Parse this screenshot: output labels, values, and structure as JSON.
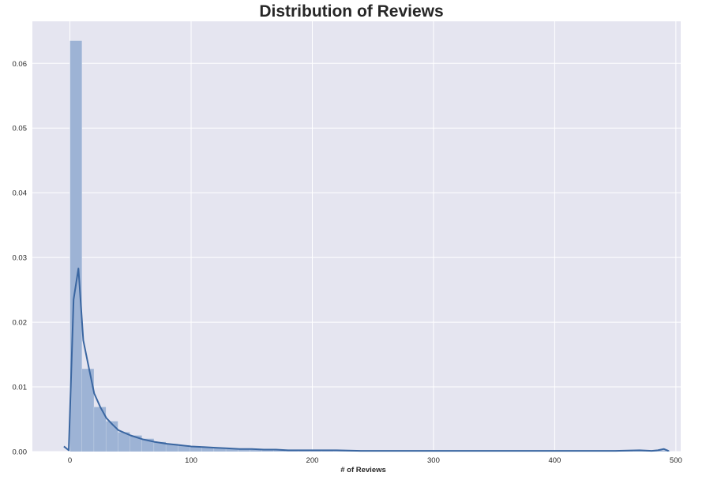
{
  "chart_data": {
    "type": "bar",
    "title": "Distribution of Reviews",
    "xlabel": "# of Reviews",
    "ylabel": "",
    "xlim": [
      -31,
      504
    ],
    "ylim": [
      0,
      0.0665
    ],
    "xticks": [
      0,
      100,
      200,
      300,
      400,
      500
    ],
    "yticks": [
      0.0,
      0.01,
      0.02,
      0.03,
      0.04,
      0.05,
      0.06
    ],
    "ytick_labels": [
      "0.00",
      "0.01",
      "0.02",
      "0.03",
      "0.04",
      "0.05",
      "0.06"
    ],
    "grid": true,
    "background": "#e5e5f0",
    "bar_color": "#9db3d5",
    "line_color": "#3a66a1",
    "bin_width": 9.9,
    "bin_starts": [
      0.0,
      9.9,
      19.8,
      29.7,
      39.6,
      49.5,
      59.4,
      69.3,
      79.2,
      89.1,
      99.0,
      108.9,
      118.8,
      128.7,
      138.6,
      148.5,
      158.4,
      168.3,
      178.2,
      188.1,
      198.0,
      207.9,
      217.8,
      227.7,
      237.6,
      247.5,
      257.4,
      267.3,
      277.2,
      287.1,
      297.0,
      306.9,
      316.8,
      326.7,
      336.6,
      346.5,
      356.4,
      366.3,
      376.2,
      386.1,
      396.0,
      405.9,
      415.8,
      425.7,
      435.6,
      445.5,
      455.4,
      465.3,
      475.2,
      485.1
    ],
    "values": [
      0.0635,
      0.0128,
      0.0069,
      0.0047,
      0.003,
      0.0025,
      0.002,
      0.0015,
      0.0012,
      0.001,
      0.0008,
      0.0007,
      0.0006,
      0.0005,
      0.0004,
      0.0004,
      0.0003,
      0.0003,
      0.0002,
      0.0002,
      0.0002,
      0.0002,
      0.0001,
      0.0001,
      0.0001,
      0.0001,
      0.0001,
      0.0001,
      0.0001,
      0.0001,
      0.0001,
      0.0001,
      0.0001,
      0.0001,
      0.0001,
      0.0001,
      0.0001,
      0.0001,
      0.0001,
      0.0001,
      0.0001,
      0.0001,
      0.0001,
      0.0001,
      0.0001,
      0.0001,
      0.0001,
      0.0001,
      0.0001,
      0.0002
    ],
    "kde": {
      "x": [
        -5,
        -1,
        3,
        7,
        11,
        15,
        20,
        25,
        30,
        35,
        40,
        50,
        60,
        70,
        80,
        90,
        100,
        110,
        120,
        130,
        140,
        150,
        160,
        170,
        180,
        190,
        200,
        220,
        240,
        260,
        280,
        300,
        330,
        360,
        390,
        420,
        450,
        470,
        480,
        485,
        490,
        494
      ],
      "y": [
        0.0008,
        0.0002,
        0.0235,
        0.0283,
        0.0172,
        0.0135,
        0.009,
        0.0069,
        0.0052,
        0.0042,
        0.0033,
        0.0025,
        0.0019,
        0.0015,
        0.0012,
        0.001,
        0.0008,
        0.0007,
        0.0006,
        0.0005,
        0.0004,
        0.0004,
        0.0003,
        0.0003,
        0.0002,
        0.0002,
        0.0002,
        0.0002,
        0.0001,
        0.0001,
        0.0001,
        0.0001,
        0.0001,
        0.0001,
        0.0001,
        0.0001,
        0.0001,
        0.0002,
        0.0001,
        0.0002,
        0.0004,
        0.0001
      ]
    }
  }
}
